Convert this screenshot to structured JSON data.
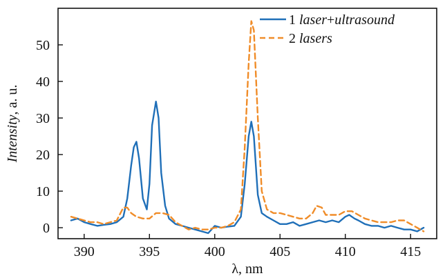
{
  "chart_data": {
    "type": "line",
    "xlabel": "λ, nm",
    "ylabel": {
      "italic": "Intensity",
      "rest": ", a. u."
    },
    "xlim": [
      388,
      417
    ],
    "ylim": [
      -3,
      60
    ],
    "xticks": [
      390,
      395,
      400,
      405,
      410,
      415
    ],
    "yticks": [
      0,
      10,
      20,
      30,
      40,
      50
    ],
    "grid": false,
    "legend_position": "top-right",
    "colors": {
      "series1": "#1f6fb8",
      "series2": "#f08c28",
      "axis": "#111111"
    },
    "series": [
      {
        "name": "laser + ultrasound",
        "legend_num": "1",
        "legend_parts": [
          "laser",
          "+",
          "ultrasound"
        ],
        "style": "solid",
        "x": [
          389.0,
          389.5,
          390.0,
          390.5,
          391.0,
          391.5,
          392.0,
          392.5,
          393.0,
          393.3,
          393.6,
          393.8,
          394.0,
          394.2,
          394.5,
          394.8,
          395.0,
          395.2,
          395.5,
          395.7,
          395.9,
          396.2,
          396.5,
          397.0,
          397.5,
          398.0,
          398.5,
          399.0,
          399.5,
          400.0,
          400.5,
          401.0,
          401.5,
          402.0,
          402.3,
          402.6,
          402.8,
          403.0,
          403.3,
          403.6,
          404.0,
          404.5,
          405.0,
          405.5,
          406.0,
          406.5,
          407.0,
          407.5,
          408.0,
          408.5,
          409.0,
          409.5,
          410.0,
          410.3,
          410.7,
          411.0,
          411.5,
          412.0,
          412.5,
          413.0,
          413.5,
          414.0,
          414.5,
          415.0,
          415.5,
          416.0
        ],
        "y": [
          2,
          2.5,
          1.5,
          1,
          0.5,
          0.8,
          1,
          1.5,
          3,
          8,
          17,
          22,
          23.5,
          19,
          8,
          5,
          12,
          28,
          34.5,
          30,
          15,
          6,
          2.5,
          1,
          0.5,
          0,
          -0.5,
          -1,
          -1.5,
          0.5,
          0,
          0.3,
          0.5,
          3,
          12,
          25,
          29,
          25,
          9,
          4,
          3,
          2,
          1,
          1,
          1.5,
          0.5,
          1,
          1.5,
          2,
          1.5,
          2,
          1.5,
          3,
          3.5,
          2.5,
          2,
          1,
          0.5,
          0.5,
          0,
          0.5,
          0,
          -0.5,
          -0.5,
          -1,
          0
        ]
      },
      {
        "name": "lasers",
        "legend_num": "2",
        "legend_parts": [
          "lasers"
        ],
        "style": "dashed",
        "x": [
          389.0,
          389.5,
          390.0,
          390.5,
          391.0,
          391.5,
          392.0,
          392.5,
          393.0,
          393.3,
          393.6,
          394.0,
          394.5,
          395.0,
          395.5,
          396.0,
          396.5,
          397.0,
          397.5,
          398.0,
          398.5,
          399.0,
          399.5,
          400.0,
          400.5,
          401.0,
          401.5,
          402.0,
          402.3,
          402.6,
          402.8,
          403.0,
          403.3,
          403.6,
          404.0,
          404.5,
          405.0,
          405.5,
          406.0,
          406.5,
          407.0,
          407.5,
          407.8,
          408.2,
          408.5,
          409.0,
          409.5,
          410.0,
          410.5,
          411.0,
          411.5,
          412.0,
          412.5,
          413.0,
          413.5,
          414.0,
          414.5,
          415.0,
          415.5,
          416.0
        ],
        "y": [
          3,
          2.5,
          2,
          1.5,
          1.5,
          1,
          1.5,
          2,
          5.5,
          5.5,
          4,
          3,
          2.5,
          2.5,
          4,
          4,
          3.5,
          1.5,
          0.5,
          -0.5,
          0,
          -0.5,
          -0.5,
          0,
          0,
          0.5,
          1.5,
          5,
          22,
          45,
          56.5,
          54,
          30,
          10,
          5,
          4,
          4,
          3.5,
          3,
          2.5,
          2.5,
          4,
          6,
          5.5,
          3.5,
          3.5,
          3.5,
          4.5,
          4.5,
          3.5,
          2.5,
          2,
          1.5,
          1.5,
          1.5,
          2,
          2,
          1,
          0,
          -1
        ]
      }
    ]
  }
}
